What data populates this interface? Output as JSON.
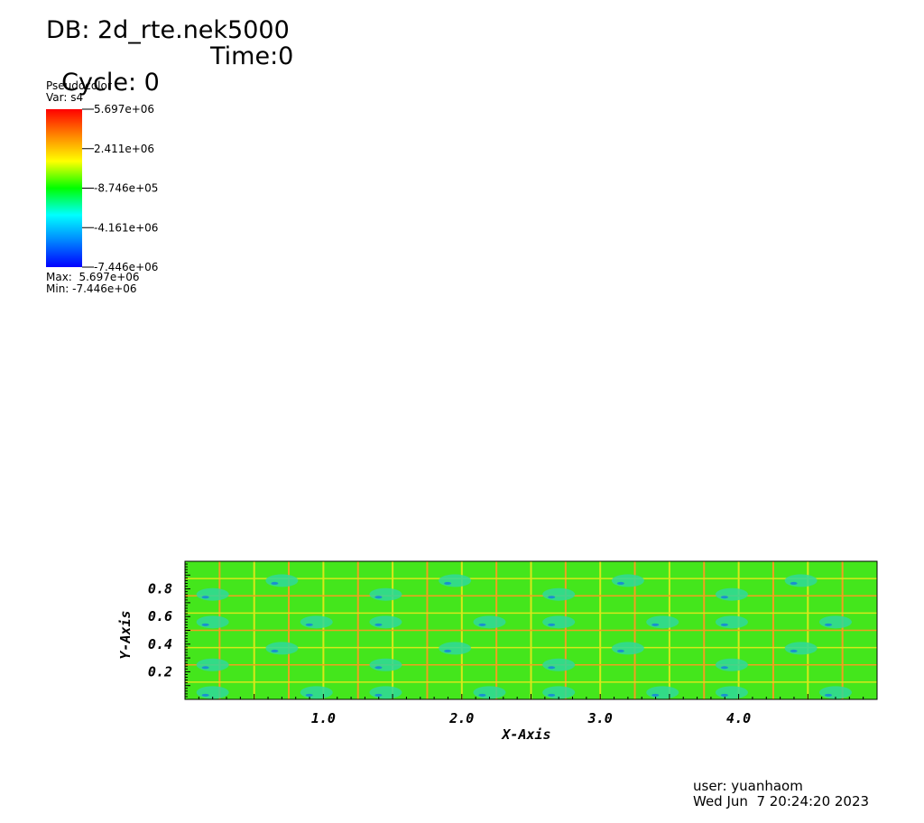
{
  "header": {
    "db_label": "DB: 2d_rte.nek5000",
    "cycle_label": "Cycle: 0",
    "time_label": "Time:0"
  },
  "legend": {
    "plot_type": "Pseudocolor",
    "var_label": "Var: s4",
    "ticks": [
      "5.697e+06",
      "2.411e+06",
      "-8.746e+05",
      "-4.161e+06",
      "-7.446e+06"
    ],
    "max_label": "Max:  5.697e+06",
    "min_label": "Min: -7.446e+06",
    "colormap": [
      "#ff0000",
      "#ff8800",
      "#ffff00",
      "#00ff00",
      "#00ffff",
      "#0088ff",
      "#0000ff"
    ]
  },
  "plot": {
    "x_axis_title": "X-Axis",
    "y_axis_title": "Y-Axis",
    "x_ticks": [
      "1.0",
      "2.0",
      "3.0",
      "4.0"
    ],
    "y_ticks": [
      "0.8",
      "0.6",
      "0.4",
      "0.2"
    ],
    "x_range": [
      0.0,
      5.0
    ],
    "y_range": [
      0.0,
      1.0
    ],
    "colors": {
      "background": "#44e61c",
      "grid_line": "#f0a020",
      "grid_line_yellow": "#d8e81a",
      "blob": "#2fd89a",
      "blob_dark": "#1a8fd0"
    }
  },
  "footer": {
    "user_label": "user: yuanhaom",
    "date_label": "Wed Jun  7 20:24:20 2023"
  }
}
